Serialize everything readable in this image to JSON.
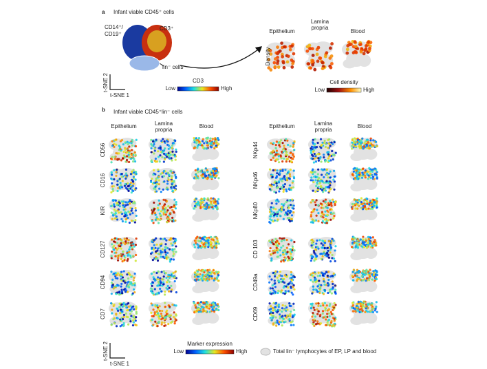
{
  "panel_a": {
    "label": "a",
    "title": "Infant viable CD45⁺ cells",
    "cluster_labels": [
      "CD14⁺/",
      "CD19⁺",
      "CD3⁺",
      "lin⁻ cells"
    ],
    "axis_y": "t-SNE 2",
    "axis_x": "t-SNE 1",
    "colorbar": {
      "title": "CD3",
      "low": "Low",
      "high": "High"
    },
    "columns": [
      [
        "Epithelium"
      ],
      [
        "Lamina",
        "propria"
      ],
      [
        "Blood"
      ]
    ],
    "row_label": "Density",
    "density_bar": {
      "title": "Cell density",
      "low": "Low",
      "high": "High"
    }
  },
  "panel_b": {
    "label": "b",
    "title": "Infant viable CD45⁺lin⁻ cells",
    "columns": [
      [
        "Epithelium"
      ],
      [
        "Lamina",
        "propria"
      ],
      [
        "Blood"
      ]
    ],
    "left_markers": [
      "CD56",
      "CD16",
      "KIR",
      "CD127",
      "CD94",
      "CD7"
    ],
    "right_markers": [
      "NKp44",
      "NKp46",
      "NKp80",
      "CD 103",
      "CD49a",
      "CD69"
    ],
    "axis_y": "t-SNE 2",
    "axis_x": "t-SNE 1",
    "colorbar": {
      "title": "Marker expression",
      "low": "Low",
      "high": "High"
    },
    "legend": "Total lin⁻ lymphocytes of EP, LP and blood"
  }
}
